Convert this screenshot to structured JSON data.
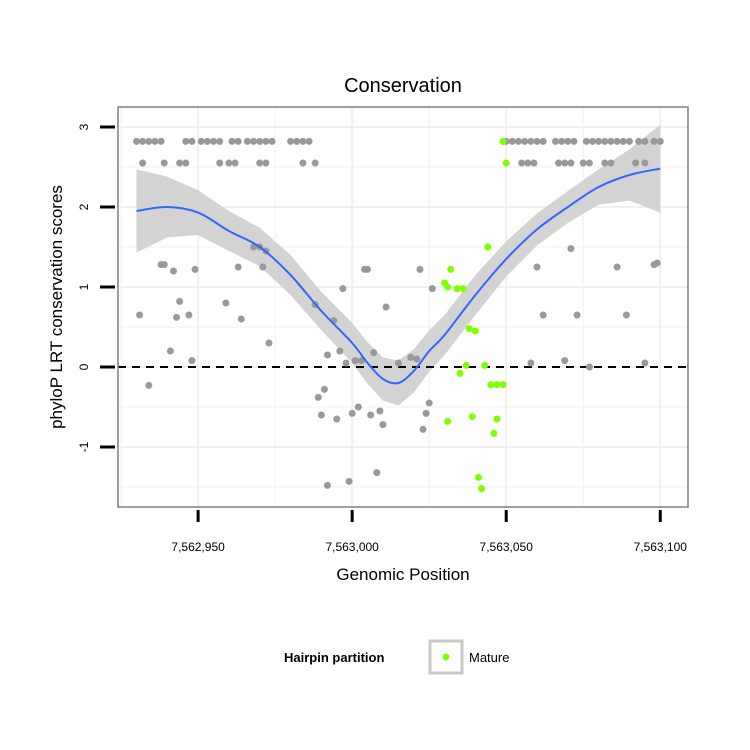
{
  "chart_data": {
    "type": "scatter",
    "title": "Conservation",
    "xlabel": "Genomic Position",
    "ylabel": "phyloP LRT conservation scores",
    "xlim": [
      7562924,
      7563109
    ],
    "ylim": [
      -1.75,
      3.25
    ],
    "x_ticks": [
      7562950,
      7563000,
      7563050,
      7563100
    ],
    "x_tick_labels": [
      "7,562,950",
      "7,563,000",
      "7,563,050",
      "7,563,100"
    ],
    "y_ticks": [
      -1,
      0,
      1,
      2,
      3
    ],
    "y_tick_labels": [
      "-1",
      "0",
      "1",
      "2",
      "3"
    ],
    "reference_line": {
      "y": 0,
      "style": "dashed",
      "color": "#000000"
    },
    "grid": true,
    "legend": {
      "title": "Hairpin partition",
      "position": "bottom",
      "entries": [
        {
          "label": "Mature",
          "color": "#7fff00"
        }
      ]
    },
    "colors": {
      "other_points": "#999999",
      "mature_points": "#7fff00",
      "smooth_line": "#3366ff",
      "ribbon": "#d3d3d3"
    },
    "series": [
      {
        "role": "other",
        "points": [
          [
            7562930,
            2.82
          ],
          [
            7562932,
            2.82
          ],
          [
            7562934,
            2.82
          ],
          [
            7562936,
            2.82
          ],
          [
            7562938,
            2.82
          ],
          [
            7562946,
            2.82
          ],
          [
            7562948,
            2.82
          ],
          [
            7562951,
            2.82
          ],
          [
            7562953,
            2.82
          ],
          [
            7562955,
            2.82
          ],
          [
            7562957,
            2.82
          ],
          [
            7562961,
            2.82
          ],
          [
            7562963,
            2.82
          ],
          [
            7562966,
            2.82
          ],
          [
            7562968,
            2.82
          ],
          [
            7562970,
            2.82
          ],
          [
            7562972,
            2.82
          ],
          [
            7562974,
            2.82
          ],
          [
            7562980,
            2.82
          ],
          [
            7562982,
            2.82
          ],
          [
            7562984,
            2.82
          ],
          [
            7562986,
            2.82
          ],
          [
            7562932,
            2.55
          ],
          [
            7562939,
            2.55
          ],
          [
            7562944,
            2.55
          ],
          [
            7562946,
            2.55
          ],
          [
            7562957,
            2.55
          ],
          [
            7562960,
            2.55
          ],
          [
            7562962,
            2.55
          ],
          [
            7562970,
            2.55
          ],
          [
            7562972,
            2.55
          ],
          [
            7562984,
            2.55
          ],
          [
            7562988,
            2.55
          ],
          [
            7562931,
            0.65
          ],
          [
            7562934,
            -0.23
          ],
          [
            7562938,
            1.28
          ],
          [
            7562939,
            1.28
          ],
          [
            7562941,
            0.2
          ],
          [
            7562942,
            1.2
          ],
          [
            7562943,
            0.62
          ],
          [
            7562944,
            0.82
          ],
          [
            7562947,
            0.65
          ],
          [
            7562948,
            0.08
          ],
          [
            7562949,
            1.22
          ],
          [
            7562959,
            0.8
          ],
          [
            7562963,
            1.25
          ],
          [
            7562964,
            0.6
          ],
          [
            7562968,
            1.5
          ],
          [
            7562970,
            1.5
          ],
          [
            7562971,
            1.25
          ],
          [
            7562972,
            1.45
          ],
          [
            7562973,
            0.3
          ],
          [
            7562988,
            0.78
          ],
          [
            7562989,
            -0.38
          ],
          [
            7562990,
            -0.6
          ],
          [
            7562991,
            -0.28
          ],
          [
            7562992,
            0.15
          ],
          [
            7562992,
            -1.48
          ],
          [
            7562994,
            0.58
          ],
          [
            7562995,
            -0.65
          ],
          [
            7562996,
            0.2
          ],
          [
            7562997,
            0.98
          ],
          [
            7562998,
            0.05
          ],
          [
            7562999,
            -1.43
          ],
          [
            7563000,
            -0.58
          ],
          [
            7563001,
            0.08
          ],
          [
            7563002,
            -0.5
          ],
          [
            7563003,
            0.08
          ],
          [
            7563004,
            1.22
          ],
          [
            7563005,
            1.22
          ],
          [
            7563006,
            -0.6
          ],
          [
            7563007,
            0.18
          ],
          [
            7563008,
            -1.32
          ],
          [
            7563009,
            -0.55
          ],
          [
            7563010,
            -0.72
          ],
          [
            7563011,
            0.75
          ],
          [
            7563015,
            0.05
          ],
          [
            7563019,
            0.12
          ],
          [
            7563021,
            0.1
          ],
          [
            7563022,
            1.22
          ],
          [
            7563023,
            -0.78
          ],
          [
            7563024,
            -0.58
          ],
          [
            7563025,
            -0.45
          ],
          [
            7563026,
            0.98
          ],
          [
            7563049,
            2.82
          ],
          [
            7563050,
            2.82
          ],
          [
            7563052,
            2.82
          ],
          [
            7563054,
            2.82
          ],
          [
            7563056,
            2.82
          ],
          [
            7563058,
            2.82
          ],
          [
            7563060,
            2.82
          ],
          [
            7563062,
            2.82
          ],
          [
            7563066,
            2.82
          ],
          [
            7563068,
            2.82
          ],
          [
            7563070,
            2.82
          ],
          [
            7563072,
            2.82
          ],
          [
            7563076,
            2.82
          ],
          [
            7563078,
            2.82
          ],
          [
            7563080,
            2.82
          ],
          [
            7563082,
            2.82
          ],
          [
            7563084,
            2.82
          ],
          [
            7563086,
            2.82
          ],
          [
            7563088,
            2.82
          ],
          [
            7563090,
            2.82
          ],
          [
            7563093,
            2.82
          ],
          [
            7563095,
            2.82
          ],
          [
            7563098,
            2.82
          ],
          [
            7563100,
            2.82
          ],
          [
            7563055,
            2.55
          ],
          [
            7563057,
            2.55
          ],
          [
            7563059,
            2.55
          ],
          [
            7563067,
            2.55
          ],
          [
            7563069,
            2.55
          ],
          [
            7563071,
            2.55
          ],
          [
            7563075,
            2.55
          ],
          [
            7563077,
            2.55
          ],
          [
            7563082,
            2.55
          ],
          [
            7563084,
            2.55
          ],
          [
            7563092,
            2.55
          ],
          [
            7563095,
            2.55
          ],
          [
            7563058,
            0.05
          ],
          [
            7563060,
            1.25
          ],
          [
            7563062,
            0.65
          ],
          [
            7563069,
            0.08
          ],
          [
            7563071,
            1.48
          ],
          [
            7563073,
            0.65
          ],
          [
            7563077,
            0.0
          ],
          [
            7563086,
            1.25
          ],
          [
            7563089,
            0.65
          ],
          [
            7563095,
            0.05
          ],
          [
            7563098,
            1.28
          ],
          [
            7563099,
            1.3
          ]
        ]
      },
      {
        "role": "mature",
        "name": "Mature",
        "points": [
          [
            7563030,
            1.05
          ],
          [
            7563031,
            1.0
          ],
          [
            7563031,
            -0.68
          ],
          [
            7563032,
            1.22
          ],
          [
            7563034,
            0.98
          ],
          [
            7563035,
            -0.08
          ],
          [
            7563036,
            0.98
          ],
          [
            7563037,
            0.02
          ],
          [
            7563038,
            0.48
          ],
          [
            7563039,
            -0.62
          ],
          [
            7563040,
            0.45
          ],
          [
            7563041,
            -1.38
          ],
          [
            7563042,
            -1.52
          ],
          [
            7563043,
            0.02
          ],
          [
            7563044,
            1.5
          ],
          [
            7563045,
            -0.22
          ],
          [
            7563046,
            -0.83
          ],
          [
            7563047,
            -0.65
          ],
          [
            7563047,
            -0.22
          ],
          [
            7563049,
            -0.22
          ],
          [
            7563049,
            2.82
          ],
          [
            7563050,
            2.55
          ]
        ]
      }
    ],
    "smooth": {
      "x": [
        7562930,
        7562940,
        7562950,
        7562960,
        7562970,
        7562980,
        7562990,
        7563000,
        7563005,
        7563010,
        7563015,
        7563020,
        7563025,
        7563030,
        7563040,
        7563050,
        7563060,
        7563070,
        7563080,
        7563090,
        7563100
      ],
      "y": [
        1.95,
        2.0,
        1.93,
        1.7,
        1.5,
        1.15,
        0.7,
        0.3,
        0.05,
        -0.15,
        -0.2,
        -0.05,
        0.2,
        0.4,
        0.9,
        1.35,
        1.72,
        2.0,
        2.25,
        2.4,
        2.48
      ],
      "ci_half_width": [
        0.52,
        0.38,
        0.28,
        0.25,
        0.24,
        0.25,
        0.24,
        0.25,
        0.26,
        0.27,
        0.28,
        0.27,
        0.26,
        0.25,
        0.25,
        0.22,
        0.2,
        0.2,
        0.22,
        0.32,
        0.55
      ]
    }
  }
}
